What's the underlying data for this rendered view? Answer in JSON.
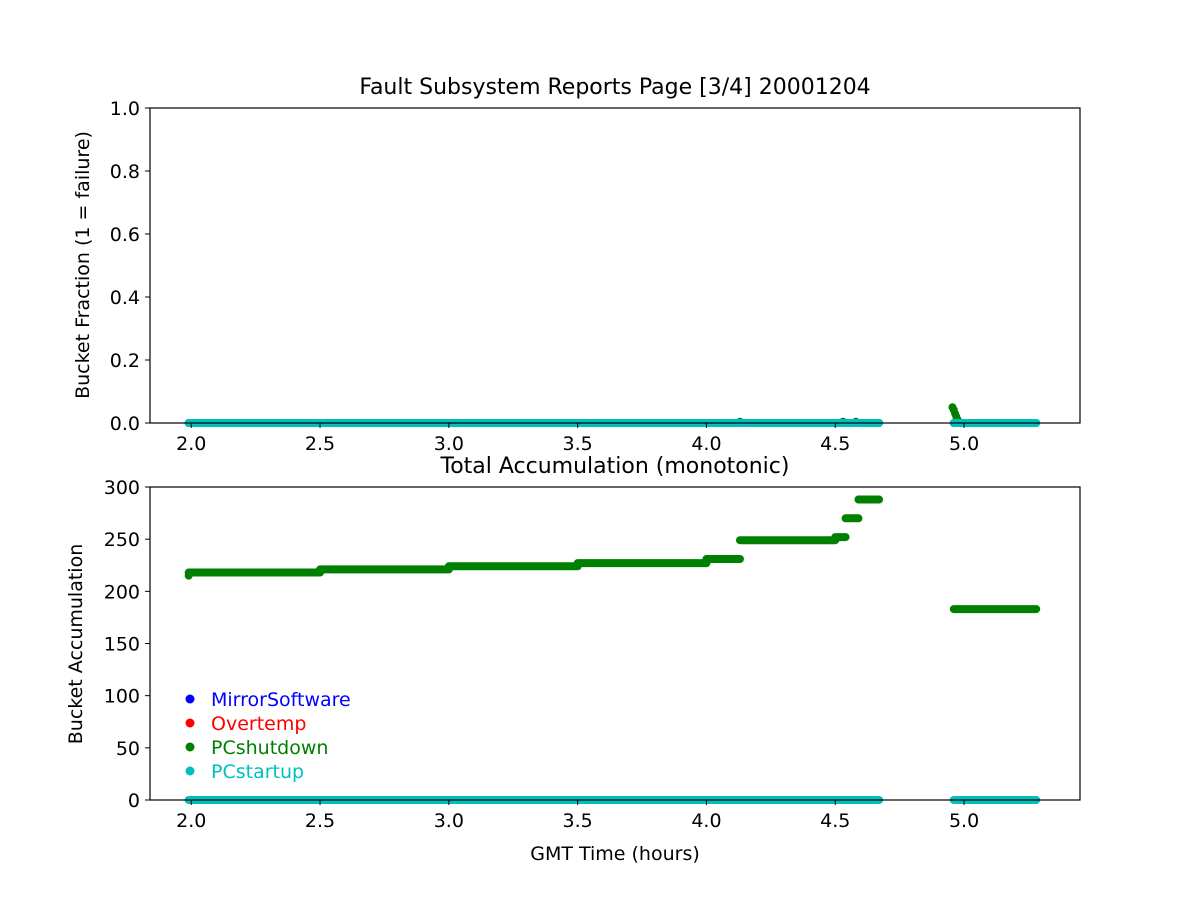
{
  "figure": {
    "title": "Fault Subsystem Reports Page [3/4] 20001204"
  },
  "colors": {
    "MirrorSoftware": "#0000ff",
    "Overtemp": "#ff0000",
    "PCshutdown": "#008000",
    "PCstartup": "#00bfbf"
  },
  "chart_data": [
    {
      "type": "scatter",
      "title": "",
      "xlabel": "",
      "ylabel": "Bucket Fraction (1 = failure)",
      "xlim": [
        1.84,
        5.45
      ],
      "ylim": [
        0,
        1.0
      ],
      "xticks": [
        "2.0",
        "2.5",
        "3.0",
        "3.5",
        "4.0",
        "4.5",
        "5.0"
      ],
      "yticks": [
        "0.0",
        "0.2",
        "0.4",
        "0.6",
        "0.8",
        "1.0"
      ],
      "series": [
        {
          "name": "PCshutdown",
          "segments": [
            {
              "x": [
                1.99,
                4.67
              ],
              "y": 0.0
            },
            {
              "x": [
                4.96,
                5.28
              ],
              "y": 0.0
            }
          ],
          "points": [
            {
              "x": 4.13,
              "y": 0.004
            },
            {
              "x": 4.53,
              "y": 0.004
            },
            {
              "x": 4.58,
              "y": 0.004
            },
            {
              "x": 4.955,
              "y": 0.05
            },
            {
              "x": 4.96,
              "y": 0.042
            },
            {
              "x": 4.965,
              "y": 0.03
            },
            {
              "x": 4.97,
              "y": 0.02
            },
            {
              "x": 4.975,
              "y": 0.01
            }
          ]
        },
        {
          "name": "PCstartup",
          "segments": [
            {
              "x": [
                1.99,
                4.67
              ],
              "y": 0.0
            },
            {
              "x": [
                4.96,
                5.28
              ],
              "y": 0.0
            }
          ],
          "points": []
        }
      ]
    },
    {
      "type": "scatter",
      "title": "Total Accumulation (monotonic)",
      "xlabel": "GMT Time (hours)",
      "ylabel": "Bucket Accumulation",
      "xlim": [
        1.84,
        5.45
      ],
      "ylim": [
        0,
        300
      ],
      "xticks": [
        "2.0",
        "2.5",
        "3.0",
        "3.5",
        "4.0",
        "4.5",
        "5.0"
      ],
      "yticks": [
        "0",
        "50",
        "100",
        "150",
        "200",
        "250",
        "300"
      ],
      "legend": {
        "placement": "lower-left",
        "entries": [
          "MirrorSoftware",
          "Overtemp",
          "PCshutdown",
          "PCstartup"
        ]
      },
      "series": [
        {
          "name": "PCshutdown",
          "segments": [
            {
              "x": [
                1.99,
                2.5
              ],
              "y": 218
            },
            {
              "x": [
                2.5,
                3.0
              ],
              "y": 221
            },
            {
              "x": [
                3.0,
                3.5
              ],
              "y": 224
            },
            {
              "x": [
                3.5,
                4.0
              ],
              "y": 227
            },
            {
              "x": [
                4.0,
                4.13
              ],
              "y": 231
            },
            {
              "x": [
                4.13,
                4.5
              ],
              "y": 249
            },
            {
              "x": [
                4.5,
                4.54
              ],
              "y": 252
            },
            {
              "x": [
                4.54,
                4.59
              ],
              "y": 270
            },
            {
              "x": [
                4.59,
                4.67
              ],
              "y": 288
            },
            {
              "x": [
                4.96,
                5.28
              ],
              "y": 183
            }
          ],
          "points": [
            {
              "x": 1.99,
              "y": 215
            }
          ]
        },
        {
          "name": "PCstartup",
          "segments": [
            {
              "x": [
                1.99,
                4.67
              ],
              "y": 0
            },
            {
              "x": [
                4.96,
                5.28
              ],
              "y": 0
            }
          ],
          "points": []
        }
      ]
    }
  ]
}
